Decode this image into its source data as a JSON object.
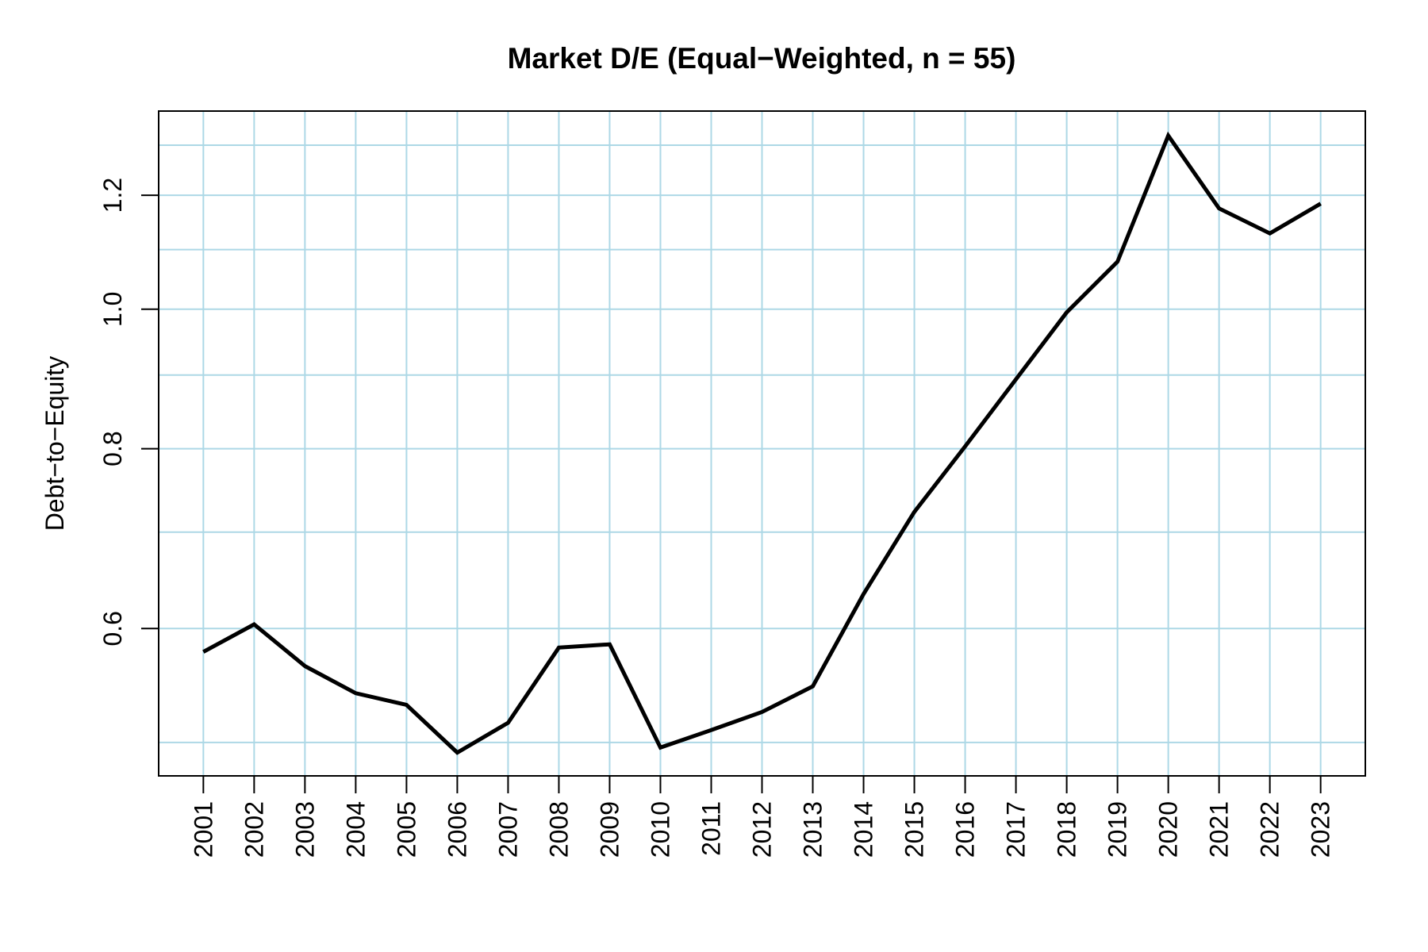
{
  "chart_data": {
    "type": "line",
    "title": "Market D/E (Equal−Weighted, n = 55)",
    "xlabel": "",
    "ylabel": "Debt−to−Equity",
    "x": [
      2001,
      2002,
      2003,
      2004,
      2005,
      2006,
      2007,
      2008,
      2009,
      2010,
      2011,
      2012,
      2013,
      2014,
      2015,
      2016,
      2017,
      2018,
      2019,
      2020,
      2021,
      2022,
      2023
    ],
    "x_tick_labels": [
      "2001",
      "2002",
      "2003",
      "2004",
      "2005",
      "2006",
      "2007",
      "2008",
      "2009",
      "2010",
      "2011",
      "2012",
      "2013",
      "2014",
      "2015",
      "2016",
      "2017",
      "2018",
      "2019",
      "2020",
      "2021",
      "2022",
      "2023"
    ],
    "series": [
      {
        "name": "Market D/E equal-weighted",
        "values": [
          0.578,
          0.604,
          0.565,
          0.541,
          0.531,
          0.492,
          0.516,
          0.582,
          0.585,
          0.496,
          0.51,
          0.525,
          0.547,
          0.634,
          0.723,
          0.803,
          0.894,
          0.995,
          1.079,
          1.32,
          1.175,
          1.129,
          1.184
        ]
      }
    ],
    "yscale": "log",
    "ylim": [
      0.474,
      1.373
    ],
    "xlim": [
      2000.12,
      2023.88
    ],
    "yticks": [
      0.6,
      0.8,
      1.0,
      1.2
    ],
    "ytick_labels": [
      "0.6",
      "0.8",
      "1.0",
      "1.2"
    ],
    "h_gridlines": [
      0.5,
      0.6,
      0.7,
      0.8,
      0.9,
      1.0,
      1.1,
      1.2,
      1.3
    ],
    "grid": "on",
    "legend_position": "none",
    "colors": {
      "line": "#000000",
      "grid": "#ADD8E6",
      "frame": "#000000",
      "background": "#FFFFFF",
      "text": "#000000"
    }
  }
}
